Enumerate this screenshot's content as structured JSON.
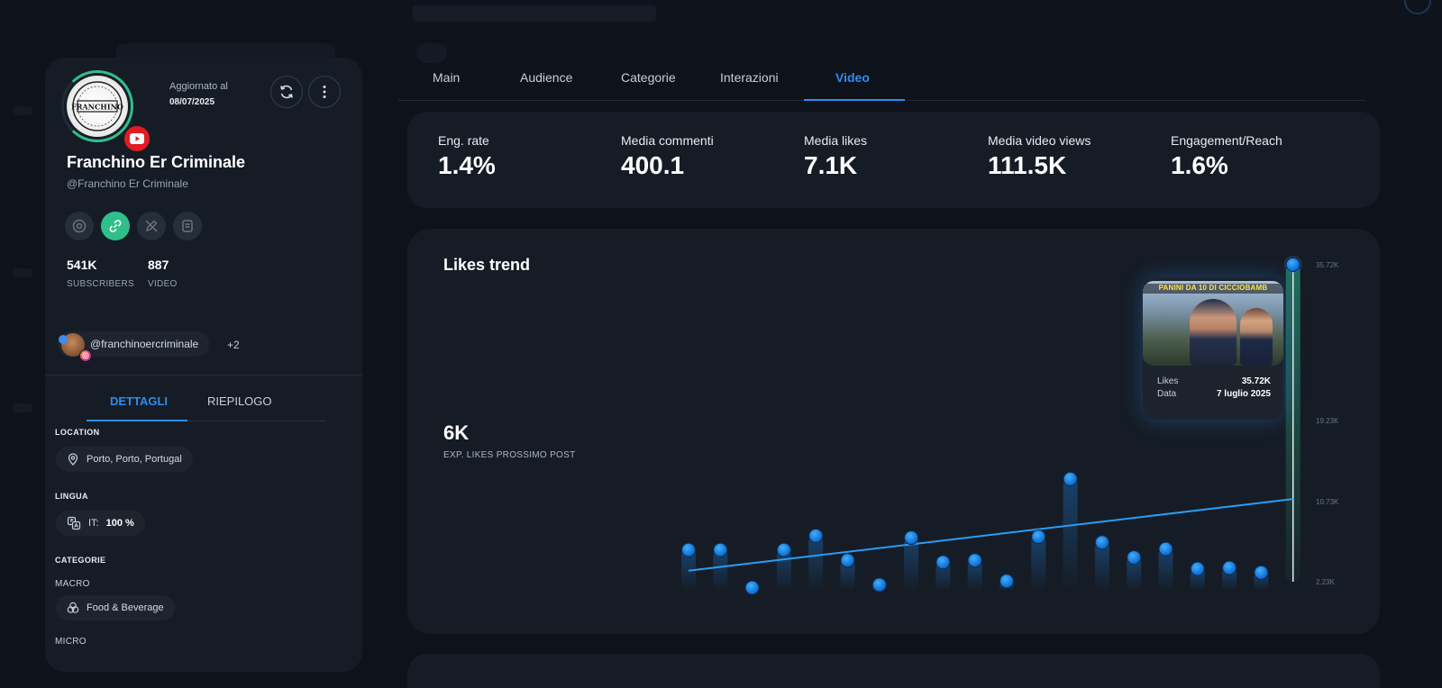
{
  "profile": {
    "updated_label": "Aggiornato al",
    "updated_date": "08/07/2025",
    "name": "Franchino Er Criminale",
    "handle": "@Franchino Er Criminale",
    "avatar_text": "FRANCHINO",
    "stats": [
      {
        "value": "541K",
        "label": "SUBSCRIBERS"
      },
      {
        "value": "887",
        "label": "VIDEO"
      }
    ],
    "linked_account": "@franchinoercriminale",
    "linked_more": "+2",
    "tabs": [
      "DETTAGLI",
      "RIEPILOGO"
    ],
    "location_label": "LOCATION",
    "location_value": "Porto, Porto, Portugal",
    "lingua_label": "LINGUA",
    "lingua_code": "IT:",
    "lingua_value": "100 %",
    "categorie_label": "CATEGORIE",
    "macro_label": "MACRO",
    "macro_value": "Food & Beverage",
    "micro_label": "MICRO"
  },
  "main_tabs": [
    "Main",
    "Audience",
    "Categorie",
    "Interazioni",
    "Video"
  ],
  "active_tab": "Video",
  "metrics": [
    {
      "label": "Eng. rate",
      "value": "1.4%"
    },
    {
      "label": "Media commenti",
      "value": "400.1"
    },
    {
      "label": "Media likes",
      "value": "7.1K"
    },
    {
      "label": "Media video views",
      "value": "111.5K"
    },
    {
      "label": "Engagement/Reach",
      "value": "1.6%"
    }
  ],
  "trend": {
    "title": "Likes trend",
    "expected_value": "6K",
    "expected_label": "EXP. LIKES PROSSIMO POST",
    "tooltip": {
      "thumbnail_title": "PANINI DA 10 DI CICCIOBAMB",
      "likes_label": "Likes",
      "likes_value": "35.72K",
      "date_label": "Data",
      "date_value": "7 luglio 2025"
    }
  },
  "chart_data": {
    "type": "scatter",
    "title": "Likes trend",
    "y_ticks": [
      "35.72K",
      "19.23K",
      "10.73K",
      "2.23K"
    ],
    "y_tick_values": [
      35720,
      19230,
      10730,
      2230
    ],
    "ylim": [
      2230,
      35720
    ],
    "values": [
      5600,
      5600,
      1600,
      5600,
      7100,
      4500,
      1900,
      6900,
      4300,
      4500,
      2300,
      7000,
      13100,
      6400,
      4800,
      5700,
      3600,
      3700,
      3200,
      35720
    ],
    "trend_line": [
      3400,
      11000
    ],
    "highlight_index": 19,
    "colors": {
      "point": "#1e88f0",
      "line": "#2a9df4",
      "highlight_bar": "#2fbf8b"
    }
  },
  "colors": {
    "accent": "#2e8cf0",
    "green": "#2fbf8b",
    "youtube": "#e21b23"
  }
}
